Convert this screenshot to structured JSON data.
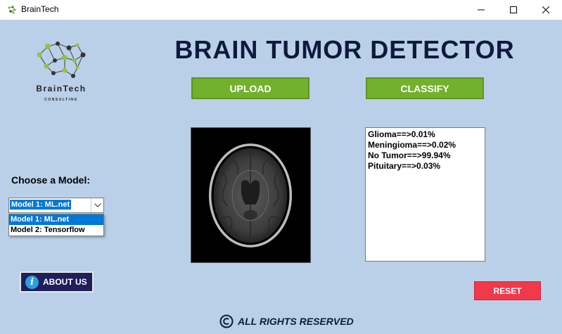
{
  "window": {
    "title": "BrainTech",
    "controls": {
      "minimize": "minimize",
      "maximize": "maximize",
      "close": "close"
    }
  },
  "logo": {
    "name": "BrainTech",
    "subtitle": "CONSULTING",
    "icon": "brain-network-icon"
  },
  "header": {
    "title": "BRAIN TUMOR DETECTOR"
  },
  "buttons": {
    "upload": "UPLOAD",
    "classify": "CLASSIFY",
    "about": "ABOUT US",
    "reset": "RESET"
  },
  "model": {
    "label": "Choose a Model:",
    "selected": "Model 1: ML.net",
    "options": [
      "Model 1: ML.net",
      "Model 2: Tensorflow"
    ]
  },
  "results": {
    "lines": [
      "Glioma==>0.01%",
      "Meningioma==>0.02%",
      "No Tumor==>99.94%",
      "Pituitary==>0.03%"
    ]
  },
  "footer": {
    "text": "ALL RIGHTS RESERVED"
  },
  "colors": {
    "background": "#bad0e9",
    "accent_green": "#72b12c",
    "reset_red": "#f0394a",
    "about_navy": "#1f1f5c",
    "title_navy": "#0e1a3d",
    "selection_blue": "#0078d7"
  }
}
